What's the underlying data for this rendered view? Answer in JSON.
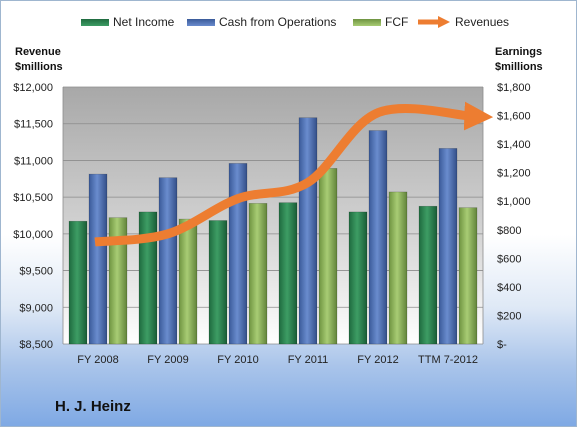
{
  "chart_data": {
    "type": "bar",
    "title": "",
    "company": "H. J. Heinz",
    "categories": [
      "FY 2008",
      "FY 2009",
      "FY 2010",
      "FY 2011",
      "FY 2012",
      "TTM 7-2012"
    ],
    "left_axis": {
      "label_line1": "Revenue",
      "label_line2": "$millions",
      "range": [
        8500,
        12000
      ],
      "ticks": [
        "$8,500",
        "$9,000",
        "$9,500",
        "$10,000",
        "$10,500",
        "$11,000",
        "$11,500",
        "$12,000"
      ]
    },
    "right_axis": {
      "label_line1": "Earnings",
      "label_line2": "$millions",
      "range": [
        0,
        1800
      ],
      "ticks": [
        "$-",
        "$200",
        "$400",
        "$600",
        "$800",
        "$1,000",
        "$1,200",
        "$1,400",
        "$1,600",
        "$1,800"
      ]
    },
    "series": [
      {
        "name": "Net Income",
        "axis": "right",
        "kind": "bar",
        "color": "#2e8b57",
        "values": [
          860,
          925,
          865,
          990,
          925,
          965
        ]
      },
      {
        "name": "Cash from Operations",
        "axis": "right",
        "kind": "bar",
        "color": "#4f73b8",
        "values": [
          1190,
          1165,
          1265,
          1585,
          1495,
          1370
        ]
      },
      {
        "name": "FCF",
        "axis": "right",
        "kind": "bar",
        "color": "#8db55a",
        "values": [
          885,
          875,
          985,
          1230,
          1065,
          955
        ]
      },
      {
        "name": "Revenues",
        "axis": "left",
        "kind": "line",
        "color": "#ed7d31",
        "values": [
          9890,
          10000,
          10480,
          10700,
          11650,
          11600
        ]
      }
    ],
    "grid": true,
    "legend_position": "top"
  }
}
